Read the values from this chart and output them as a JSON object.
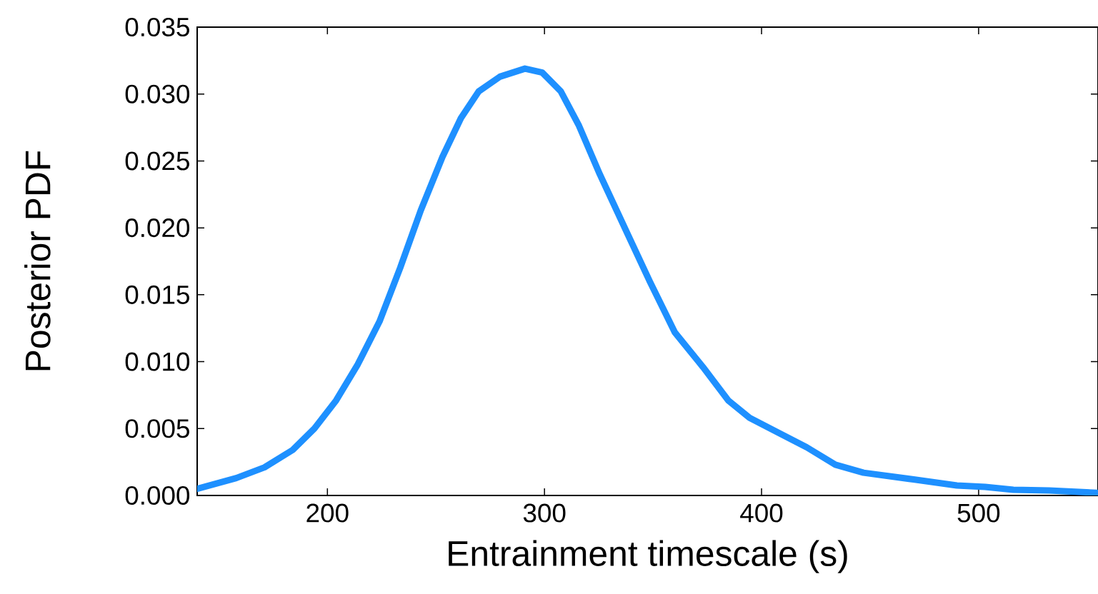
{
  "chart_data": {
    "type": "line",
    "xlabel": "Entrainment timescale (s)",
    "ylabel": "Posterior PDF",
    "xlim": [
      140,
      555
    ],
    "ylim": [
      0,
      0.035
    ],
    "xticks": [
      200,
      300,
      400,
      500
    ],
    "yticks": [
      {
        "value": 0,
        "label": "0.000"
      },
      {
        "value": 0.005,
        "label": "0.005"
      },
      {
        "value": 0.01,
        "label": "0.010"
      },
      {
        "value": 0.015,
        "label": "0.015"
      },
      {
        "value": 0.02,
        "label": "0.020"
      },
      {
        "value": 0.025,
        "label": "0.025"
      },
      {
        "value": 0.03,
        "label": "0.030"
      },
      {
        "value": 0.035,
        "label": "0.035"
      }
    ],
    "x": [
      140,
      158,
      171,
      184,
      194,
      204,
      214,
      224,
      233.5,
      243,
      253,
      261.5,
      269.7,
      279.5,
      291,
      299,
      307.5,
      315.7,
      325.5,
      338.7,
      348.5,
      360,
      373,
      384.7,
      394.5,
      407.7,
      420.8,
      434,
      447,
      470,
      490,
      503,
      516,
      532.5,
      554.5
    ],
    "series": [
      {
        "color": "#1e90ff",
        "values": [
          0.0005,
          0.0013,
          0.0021,
          0.0034,
          0.005,
          0.0071,
          0.0098,
          0.013,
          0.017,
          0.0213,
          0.0253,
          0.0282,
          0.0302,
          0.0313,
          0.0319,
          0.0316,
          0.0302,
          0.0277,
          0.024,
          0.0194,
          0.016,
          0.0122,
          0.0096,
          0.0071,
          0.0058,
          0.0047,
          0.0036,
          0.0023,
          0.0017,
          0.0012,
          0.00075,
          0.00064,
          0.00043,
          0.00037,
          0.0002
        ]
      }
    ],
    "grid": false,
    "marker": "none",
    "line_style": "solid"
  }
}
